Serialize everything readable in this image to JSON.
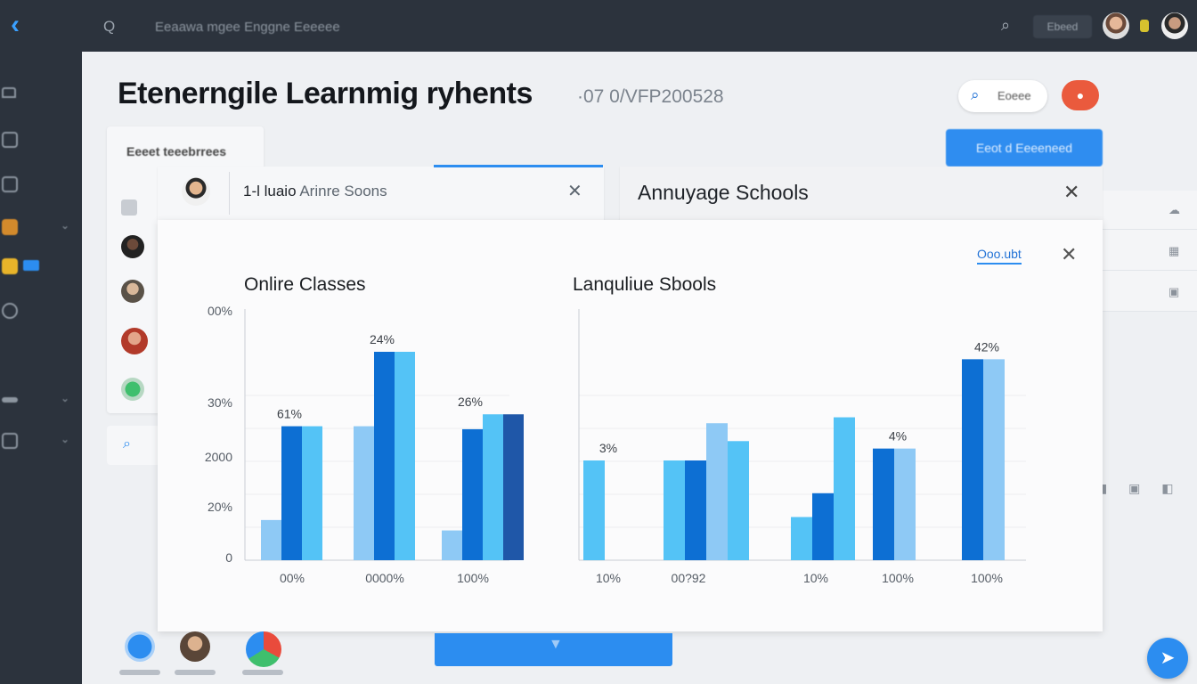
{
  "topbar": {
    "back_icon": "back-arrow-icon",
    "app_icon": "Q",
    "breadcrumb": "Eeaawa mgee Enggne  Eeeeee",
    "action_label": "Ebeed"
  },
  "sidebar": {
    "items": [
      {
        "label": "",
        "icon": "home-icon"
      },
      {
        "label": "",
        "icon": "shield-icon"
      },
      {
        "label": "",
        "icon": "folder-icon"
      },
      {
        "label": "",
        "icon": "briefcase-icon"
      },
      {
        "label": "",
        "icon": "card-icon"
      },
      {
        "label": "",
        "icon": "bell-icon"
      },
      {
        "label": "",
        "icon": "list-icon"
      },
      {
        "label": "",
        "icon": "building-icon"
      }
    ]
  },
  "header": {
    "title": "Etenerngile Learnmig ryhents",
    "date": "·07 0/VFP200528",
    "search_label": "Eoeee",
    "primary_action": "Eeot d Eeeeneed"
  },
  "list_panel": {
    "title": "Eeeet teeebrrees"
  },
  "tabs": {
    "left": {
      "label_strong": "1-l luaio",
      "label_lite": "Arinre Soons"
    },
    "right": {
      "label": "Annuyage Schools"
    }
  },
  "card": {
    "link_label": "Ooo.ubt"
  },
  "chart_data": [
    {
      "type": "bar",
      "title": "Onlire Classes",
      "y_tick_labels": [
        "0",
        "20%",
        "2000",
        "30%",
        "00%"
      ],
      "categories": [
        "00%",
        "0000%",
        "100%"
      ],
      "series": [
        {
          "values": [
            27,
            90,
            20
          ],
          "color": "#8ec9f5"
        },
        {
          "values": [
            90,
            140,
            88
          ],
          "color": "#0d6fd3"
        },
        {
          "values": [
            90,
            140,
            98
          ],
          "color": "#54c3f6"
        },
        {
          "values": [
            null,
            null,
            98
          ],
          "color": "#1f57a8"
        }
      ],
      "data_labels": [
        {
          "category": "00%",
          "text": "61%"
        },
        {
          "category": "0000%",
          "text": "24%"
        },
        {
          "category": "100%",
          "text": "26%"
        }
      ],
      "ylim": [
        0,
        165
      ]
    },
    {
      "type": "bar",
      "title": "Lanquliue Sbools",
      "categories": [
        "10%",
        "00?92",
        "10%",
        "100%",
        "100%"
      ],
      "series": [
        {
          "values": [
            67,
            67,
            29,
            null,
            null
          ],
          "color": "#54c3f6"
        },
        {
          "values": [
            null,
            67,
            45,
            75,
            135
          ],
          "color": "#0d6fd3"
        },
        {
          "values": [
            null,
            92,
            null,
            75,
            135
          ],
          "color": "#8ec9f5"
        },
        {
          "values": [
            null,
            80,
            96,
            null,
            null
          ],
          "color": "#54c3f6"
        }
      ],
      "data_labels": [
        {
          "category_index": 0,
          "text": "3%"
        },
        {
          "category_index": 3,
          "text": "4%"
        },
        {
          "category_index": 4,
          "text": "42%"
        }
      ],
      "ylim": [
        0,
        165
      ]
    }
  ]
}
